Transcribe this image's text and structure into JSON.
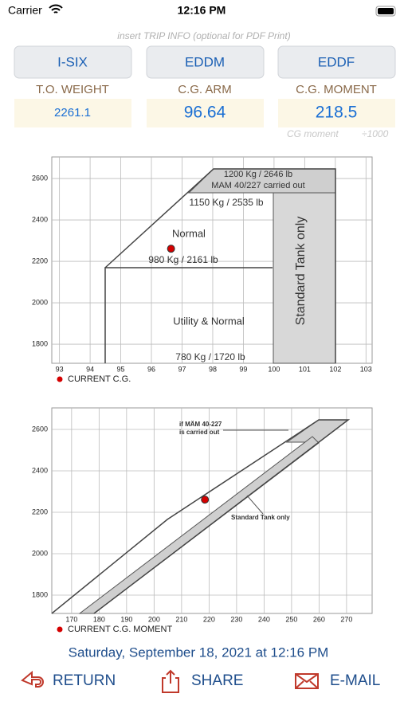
{
  "status": {
    "carrier": "Carrier",
    "time": "12:16 PM"
  },
  "trip_info": "insert TRIP INFO (optional for PDF Print)",
  "buttons": [
    "I-SIX",
    "EDDM",
    "EDDF"
  ],
  "fields": [
    {
      "label": "T.O. WEIGHT",
      "value": "2261.1"
    },
    {
      "label": "C.G. ARM",
      "value": "96.64"
    },
    {
      "label": "C.G. MOMENT",
      "value": "218.5"
    }
  ],
  "moment_note": [
    "CG moment",
    "÷1000"
  ],
  "chart_data": [
    {
      "type": "scatter",
      "x": [
        96.64
      ],
      "series": [
        {
          "name": "CURRENT C.G.",
          "color": "#d40000",
          "values": [
            2261.1
          ]
        }
      ],
      "xlim": [
        92.75,
        103.2
      ],
      "xticks": [
        93,
        94,
        95,
        96,
        97,
        98,
        99,
        100,
        101,
        102,
        103
      ],
      "ylim": [
        1708,
        2704
      ],
      "yticks": [
        1800,
        2000,
        2200,
        2400,
        2600
      ],
      "grid": true,
      "annotations": [
        "1200 Kg / 2646 lb",
        "MAM 40/227 carried out",
        "1150 Kg / 2535 lb",
        "Normal",
        "980 Kg / 2161 lb",
        "Utility & Normal",
        "780 Kg / 1720 lb",
        "Standard Tank only"
      ]
    },
    {
      "type": "scatter",
      "x": [
        218.5
      ],
      "series": [
        {
          "name": "CURRENT C.G. MOMENT",
          "color": "#d40000",
          "values": [
            2261.1
          ]
        }
      ],
      "xlim": [
        162.8,
        279.3
      ],
      "xticks": [
        170,
        180,
        190,
        200,
        210,
        220,
        230,
        240,
        250,
        260,
        270
      ],
      "ylim": [
        1711.5,
        2704
      ],
      "yticks": [
        1800,
        2000,
        2200,
        2400,
        2600
      ],
      "grid": true,
      "annotations": [
        "if MÄM 40-227",
        "is carried out",
        "Standard Tank only"
      ]
    }
  ],
  "date": "Saturday, September 18, 2021 at 12:16 PM",
  "actions": [
    "RETURN",
    "SHARE",
    "E-MAIL"
  ]
}
